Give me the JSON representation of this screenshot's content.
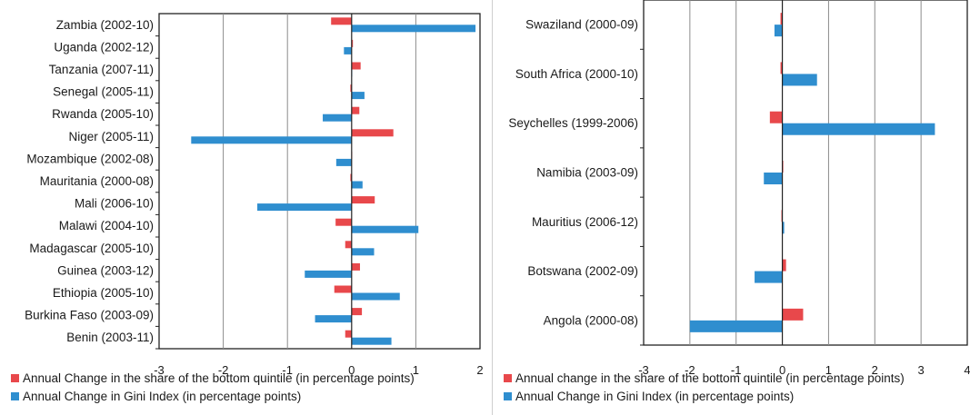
{
  "chart_data": [
    {
      "type": "bar",
      "orientation": "horizontal",
      "title": "",
      "xlim": [
        -3,
        2
      ],
      "x_ticks": [
        "-3",
        "-2",
        "-1",
        "0",
        "1",
        "2"
      ],
      "grid": true,
      "legend_position": "bottom",
      "categories": [
        "Zambia (2002-10)",
        "Uganda (2002-12)",
        "Tanzania (2007-11)",
        "Senegal (2005-11)",
        "Rwanda (2005-10)",
        "Niger (2005-11)",
        "Mozambique (2002-08)",
        "Mauritania (2000-08)",
        "Mali (2006-10)",
        "Malawi (2004-10)",
        "Madagascar (2005-10)",
        "Guinea (2003-12)",
        "Ethiopia (2005-10)",
        "Burkina Faso (2003-09)",
        "Benin (2003-11)"
      ],
      "series": [
        {
          "name": "Annual Change in the share of the bottom  quintile (in percentage points)",
          "color": "#e8484b",
          "values": [
            -0.32,
            0.02,
            0.14,
            -0.02,
            0.12,
            0.65,
            0.0,
            -0.02,
            0.36,
            -0.25,
            -0.1,
            0.13,
            -0.27,
            0.16,
            -0.1
          ]
        },
        {
          "name": "Annual Change  in Gini Index (in percentage points)",
          "color": "#2f8ecf",
          "values": [
            1.93,
            -0.12,
            0.01,
            0.2,
            -0.45,
            -2.5,
            -0.24,
            0.17,
            -1.47,
            1.04,
            0.35,
            -0.73,
            0.75,
            -0.57,
            0.62
          ]
        }
      ]
    },
    {
      "type": "bar",
      "orientation": "horizontal",
      "title": "",
      "xlim": [
        -3,
        4
      ],
      "x_ticks": [
        "-3",
        "-2",
        "-1",
        "0",
        "1",
        "2",
        "3",
        "4"
      ],
      "grid": true,
      "legend_position": "bottom",
      "categories": [
        "Swaziland (2000-09)",
        "South Africa (2000-10)",
        "Seychelles (1999-2006)",
        "Namibia (2003-09)",
        "Mauritius (2006-12)",
        "Botswana (2002-09)",
        "Angola (2000-08)"
      ],
      "series": [
        {
          "name": "Annual change in the share of the bottom  quintile (in percentage points)",
          "color": "#e8484b",
          "values": [
            -0.04,
            -0.04,
            -0.27,
            0.02,
            -0.02,
            0.08,
            0.45
          ]
        },
        {
          "name": "Annual Change  in Gini Index (in percentage points)",
          "color": "#2f8ecf",
          "values": [
            -0.17,
            0.75,
            3.3,
            -0.4,
            0.04,
            -0.6,
            -2.0
          ]
        }
      ]
    }
  ]
}
